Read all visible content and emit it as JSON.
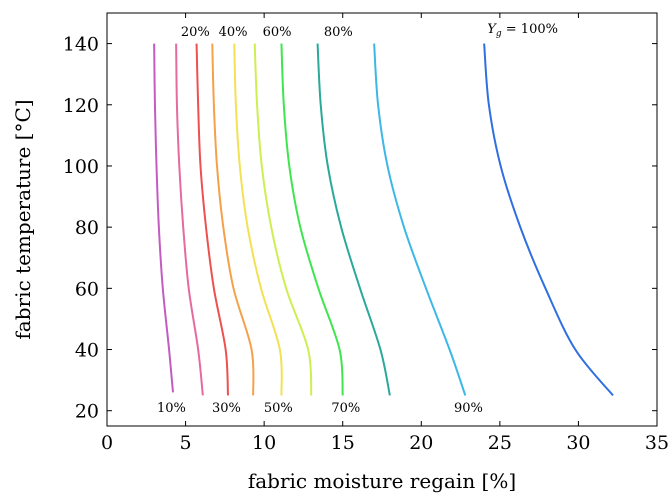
{
  "chart_data": {
    "type": "line",
    "title": "",
    "xlabel": "fabric moisture regain [%]",
    "ylabel": "fabric temperature [°C]",
    "xlim": [
      0,
      35
    ],
    "ylim": [
      15,
      150
    ],
    "xticks": [
      0,
      5,
      10,
      15,
      20,
      25,
      30,
      35
    ],
    "yticks": [
      20,
      40,
      60,
      80,
      100,
      120,
      140
    ],
    "grid": false,
    "series": [
      {
        "name": "10%",
        "color": "#c45bc1",
        "x": [
          3.0,
          3.05,
          3.15,
          3.3,
          3.55,
          3.95,
          4.2
        ],
        "y": [
          140,
          120,
          100,
          80,
          60,
          40,
          26
        ]
      },
      {
        "name": "20%",
        "color": "#e46a9f",
        "x": [
          4.4,
          4.45,
          4.6,
          4.85,
          5.2,
          5.8,
          6.1
        ],
        "y": [
          140,
          120,
          100,
          80,
          60,
          40,
          25
        ]
      },
      {
        "name": "30%",
        "color": "#ee5050",
        "x": [
          5.7,
          5.8,
          5.95,
          6.3,
          6.8,
          7.55,
          7.7
        ],
        "y": [
          140,
          120,
          100,
          80,
          60,
          40,
          25
        ]
      },
      {
        "name": "40%",
        "color": "#f6a04a",
        "x": [
          6.7,
          6.8,
          7.0,
          7.4,
          8.05,
          9.2,
          9.3
        ],
        "y": [
          140,
          120,
          100,
          80,
          60,
          40,
          25
        ]
      },
      {
        "name": "50%",
        "color": "#f3e154",
        "x": [
          8.1,
          8.2,
          8.45,
          8.95,
          9.8,
          11.0,
          11.1
        ],
        "y": [
          140,
          120,
          100,
          80,
          60,
          40,
          25
        ]
      },
      {
        "name": "60%",
        "color": "#ceee52",
        "x": [
          9.4,
          9.55,
          9.85,
          10.45,
          11.4,
          12.8,
          13.0
        ],
        "y": [
          140,
          120,
          100,
          80,
          60,
          40,
          25
        ]
      },
      {
        "name": "70%",
        "color": "#3fe54e",
        "x": [
          11.1,
          11.25,
          11.6,
          12.3,
          13.45,
          14.8,
          15.0
        ],
        "y": [
          140,
          120,
          100,
          80,
          60,
          40,
          25
        ]
      },
      {
        "name": "80%",
        "color": "#2aa99b",
        "x": [
          13.4,
          13.6,
          14.05,
          14.9,
          16.1,
          17.4,
          18.0
        ],
        "y": [
          140,
          120,
          100,
          80,
          60,
          40,
          25
        ]
      },
      {
        "name": "90%",
        "color": "#3cb7e6",
        "x": [
          17.0,
          17.25,
          17.85,
          18.9,
          20.3,
          21.8,
          22.8
        ],
        "y": [
          140,
          120,
          100,
          80,
          60,
          40,
          25
        ]
      },
      {
        "name": "100%",
        "color": "#2f6fe0",
        "x": [
          24.0,
          24.3,
          25.05,
          26.3,
          27.9,
          29.8,
          32.2
        ],
        "y": [
          140,
          120,
          100,
          80,
          60,
          40,
          25
        ]
      }
    ],
    "annotations": {
      "top": [
        {
          "text": "20%",
          "x": 4.7,
          "y": 142.5
        },
        {
          "text": "40%",
          "x": 7.1,
          "y": 142.5
        },
        {
          "text": "60%",
          "x": 9.9,
          "y": 142.5
        },
        {
          "text": "80%",
          "x": 13.8,
          "y": 142.5
        },
        {
          "text": "Y",
          "sub": "g",
          "rest": " = 100%",
          "x": 24.2,
          "y": 143.5
        }
      ],
      "bottom": [
        {
          "text": "10%",
          "x": 4.1,
          "y": 19.5
        },
        {
          "text": "30%",
          "x": 7.6,
          "y": 19.5
        },
        {
          "text": "50%",
          "x": 10.9,
          "y": 19.5
        },
        {
          "text": "70%",
          "x": 15.2,
          "y": 19.5
        },
        {
          "text": "90%",
          "x": 23.0,
          "y": 19.5
        }
      ]
    }
  }
}
